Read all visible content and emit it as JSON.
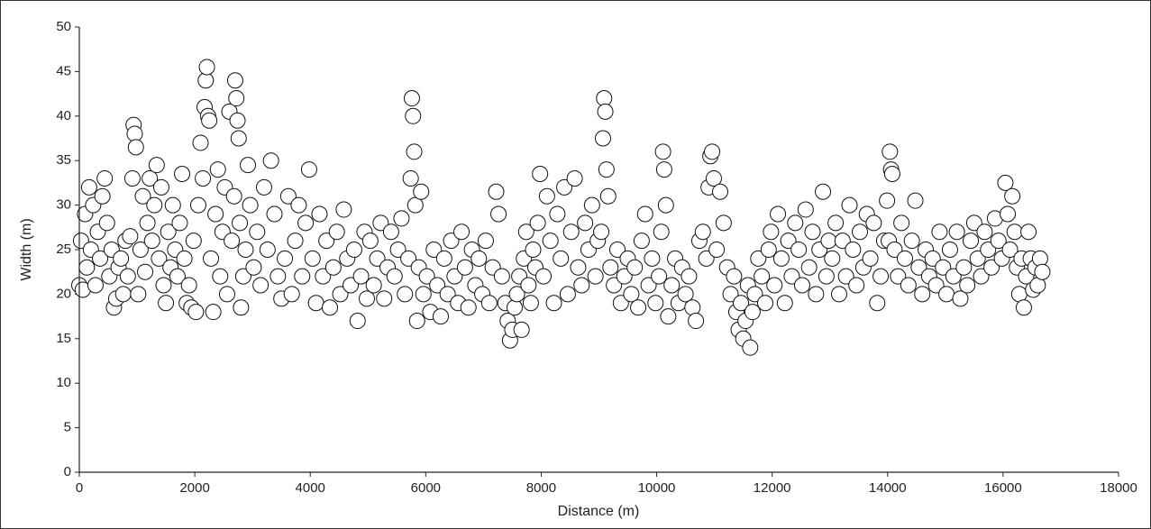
{
  "chart_data": {
    "type": "scatter",
    "xlabel": "Distance (m)",
    "ylabel": "Width (m)",
    "xlim": [
      0,
      18000
    ],
    "xticks": [
      0,
      2000,
      4000,
      6000,
      8000,
      10000,
      12000,
      14000,
      16000,
      18000
    ],
    "ylim": [
      0,
      50
    ],
    "yticks": [
      0,
      5,
      10,
      15,
      20,
      25,
      30,
      35,
      40,
      45,
      50
    ],
    "color": "#ffffff",
    "x": [
      0,
      30,
      60,
      100,
      130,
      170,
      200,
      240,
      280,
      320,
      360,
      400,
      440,
      480,
      520,
      560,
      600,
      640,
      680,
      720,
      760,
      800,
      840,
      880,
      920,
      940,
      960,
      980,
      1020,
      1060,
      1100,
      1140,
      1180,
      1220,
      1260,
      1300,
      1340,
      1380,
      1420,
      1460,
      1500,
      1540,
      1580,
      1620,
      1660,
      1700,
      1740,
      1780,
      1820,
      1860,
      1900,
      1940,
      1980,
      2020,
      2060,
      2100,
      2140,
      2170,
      2190,
      2210,
      2230,
      2250,
      2280,
      2320,
      2360,
      2400,
      2440,
      2480,
      2520,
      2560,
      2600,
      2640,
      2680,
      2700,
      2720,
      2740,
      2760,
      2780,
      2800,
      2840,
      2880,
      2920,
      2960,
      3020,
      3080,
      3140,
      3200,
      3260,
      3320,
      3380,
      3440,
      3500,
      3560,
      3620,
      3680,
      3740,
      3800,
      3860,
      3920,
      3980,
      4040,
      4100,
      4160,
      4220,
      4280,
      4340,
      4400,
      4460,
      4520,
      4580,
      4640,
      4700,
      4760,
      4820,
      4880,
      4940,
      4980,
      5040,
      5100,
      5160,
      5220,
      5280,
      5340,
      5400,
      5460,
      5520,
      5580,
      5640,
      5700,
      5740,
      5760,
      5780,
      5800,
      5820,
      5850,
      5880,
      5920,
      5960,
      6020,
      6080,
      6140,
      6200,
      6260,
      6320,
      6380,
      6440,
      6500,
      6560,
      6620,
      6680,
      6740,
      6800,
      6860,
      6920,
      6980,
      7040,
      7100,
      7160,
      7220,
      7260,
      7320,
      7380,
      7420,
      7460,
      7500,
      7540,
      7580,
      7620,
      7660,
      7700,
      7740,
      7780,
      7820,
      7860,
      7900,
      7940,
      7980,
      8040,
      8100,
      8160,
      8220,
      8280,
      8340,
      8400,
      8460,
      8520,
      8580,
      8640,
      8700,
      8760,
      8820,
      8880,
      8940,
      8980,
      9040,
      9070,
      9090,
      9110,
      9130,
      9160,
      9200,
      9260,
      9320,
      9380,
      9440,
      9500,
      9560,
      9620,
      9680,
      9740,
      9800,
      9860,
      9920,
      9980,
      10040,
      10080,
      10110,
      10130,
      10160,
      10200,
      10260,
      10320,
      10380,
      10440,
      10500,
      10560,
      10620,
      10680,
      10740,
      10800,
      10860,
      10900,
      10930,
      10960,
      10990,
      11040,
      11100,
      11160,
      11220,
      11280,
      11340,
      11380,
      11420,
      11460,
      11500,
      11540,
      11580,
      11620,
      11660,
      11700,
      11760,
      11820,
      11880,
      11940,
      11980,
      12040,
      12100,
      12160,
      12220,
      12280,
      12340,
      12400,
      12460,
      12520,
      12580,
      12640,
      12700,
      12760,
      12820,
      12880,
      12940,
      12980,
      13040,
      13100,
      13160,
      13220,
      13280,
      13340,
      13400,
      13460,
      13520,
      13580,
      13640,
      13700,
      13760,
      13820,
      13880,
      13940,
      13990,
      14020,
      14040,
      14060,
      14080,
      14120,
      14180,
      14240,
      14300,
      14360,
      14420,
      14480,
      14540,
      14600,
      14660,
      14720,
      14780,
      14840,
      14900,
      14960,
      15020,
      15080,
      15140,
      15200,
      15260,
      15320,
      15380,
      15440,
      15500,
      15560,
      15620,
      15680,
      15740,
      15800,
      15860,
      15920,
      15980,
      16040,
      16080,
      16120,
      16160,
      16200,
      16240,
      16280,
      16320,
      16360,
      16400,
      16440,
      16480,
      16520,
      16560,
      16600,
      16640,
      16680
    ],
    "values": [
      21,
      26,
      20.5,
      29,
      23,
      32,
      25,
      30,
      21,
      27,
      24,
      31,
      33,
      28,
      22,
      25,
      18.5,
      19.5,
      23,
      24,
      20,
      26,
      22,
      26.5,
      33,
      39,
      38,
      36.5,
      20,
      25,
      31,
      22.5,
      28,
      33,
      26,
      30,
      34.5,
      24,
      32,
      21,
      19,
      27,
      23,
      30,
      25,
      22,
      28,
      33.5,
      24,
      19,
      21,
      18.5,
      26,
      18,
      30,
      37,
      33,
      41,
      44,
      45.5,
      40,
      39.5,
      24,
      18,
      29,
      34,
      22,
      27,
      32,
      20,
      40.5,
      26,
      31,
      44,
      42,
      39.5,
      37.5,
      28,
      18.5,
      22,
      25,
      34.5,
      30,
      23,
      27,
      21,
      32,
      25,
      35,
      29,
      22,
      19.5,
      24,
      31,
      20,
      26,
      30,
      22,
      28,
      34,
      24,
      19,
      29,
      22,
      26,
      18.5,
      23,
      27,
      20,
      29.5,
      24,
      21,
      25,
      17,
      22,
      27,
      19.5,
      26,
      21,
      24,
      28,
      19.5,
      23,
      27,
      22,
      25,
      28.5,
      20,
      24,
      33,
      42,
      40,
      36,
      30,
      17,
      23,
      31.5,
      20,
      22,
      18,
      25,
      21,
      17.5,
      24,
      20,
      26,
      22,
      19,
      27,
      23,
      18.5,
      25,
      21,
      24,
      20,
      26,
      19,
      23,
      31.5,
      29,
      22,
      19,
      17,
      14.8,
      16,
      18.5,
      20,
      22,
      16,
      24,
      27,
      21,
      19,
      25,
      23,
      28,
      33.5,
      22,
      31,
      26,
      19,
      29,
      24,
      32,
      20,
      27,
      33,
      23,
      21,
      28,
      25,
      30,
      22,
      26,
      27,
      37.5,
      42,
      40.5,
      34,
      31,
      23,
      21,
      25,
      19,
      22,
      24,
      20,
      23,
      18.5,
      26,
      29,
      21,
      24,
      19,
      22,
      27,
      36,
      34,
      30,
      17.5,
      21,
      24,
      19,
      23,
      20,
      22,
      18.5,
      17,
      26,
      27,
      24,
      32,
      35.5,
      36,
      33,
      25,
      31.5,
      28,
      23,
      20,
      22,
      18,
      16,
      19,
      15,
      17,
      21,
      14,
      18,
      20,
      24,
      22,
      19,
      25,
      27,
      21,
      29,
      24,
      19,
      26,
      22,
      28,
      25,
      21,
      29.5,
      23,
      27,
      20,
      25,
      31.5,
      22,
      26,
      24,
      28,
      20,
      26,
      22,
      30,
      25,
      21,
      27,
      23,
      29,
      24,
      28,
      19,
      22,
      26,
      30.5,
      26,
      36,
      34,
      33.5,
      25,
      22,
      28,
      24,
      21,
      26,
      30.5,
      23,
      20,
      25,
      22,
      24,
      21,
      27,
      23,
      20,
      25,
      22,
      27,
      19.5,
      23,
      21,
      26,
      28,
      24,
      22,
      27,
      25,
      23,
      28.5,
      26,
      24,
      32.5,
      29,
      25,
      31,
      27,
      23,
      20,
      24,
      18.5,
      22,
      27,
      24,
      20.5,
      23,
      21,
      24,
      22.5
    ]
  }
}
